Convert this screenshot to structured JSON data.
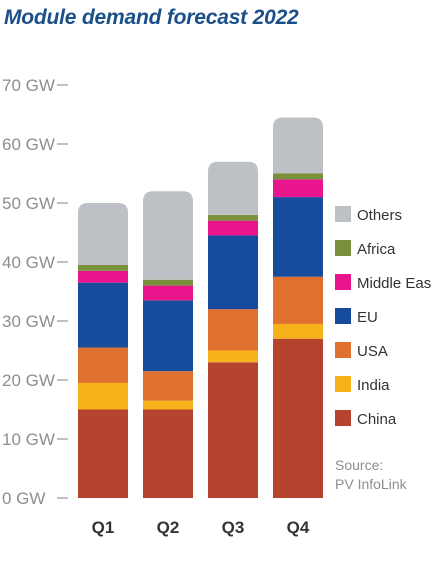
{
  "chart_data": {
    "type": "bar",
    "stacked": true,
    "title": "Module demand forecast 2022",
    "categories": [
      "Q1",
      "Q2",
      "Q3",
      "Q4"
    ],
    "yticks": [
      "0 GW",
      "10 GW",
      "20 GW",
      "30 GW",
      "40 GW",
      "50 GW",
      "60 GW",
      "70 GW"
    ],
    "ylim": [
      0,
      70
    ],
    "legend_position": "right",
    "grid": false,
    "series": [
      {
        "name": "China",
        "color": "#b5432d",
        "values": [
          15,
          15,
          23,
          27
        ]
      },
      {
        "name": "India",
        "color": "#f7b21b",
        "values": [
          4.5,
          1.5,
          2,
          2.5
        ]
      },
      {
        "name": "USA",
        "color": "#e07030",
        "values": [
          6,
          5,
          7,
          8
        ]
      },
      {
        "name": "EU",
        "color": "#174c9c",
        "values": [
          11,
          12,
          12.5,
          13.5
        ]
      },
      {
        "name": "Middle East",
        "color": "#e8158c",
        "values": [
          2,
          2.5,
          2.5,
          3
        ]
      },
      {
        "name": "Africa",
        "color": "#78913a",
        "values": [
          1,
          1,
          1,
          1
        ]
      },
      {
        "name": "Others",
        "color": "#bdc1c6",
        "values": [
          10.5,
          15,
          9,
          9.5
        ]
      }
    ],
    "source": [
      "Source:",
      "PV InfoLink"
    ]
  }
}
